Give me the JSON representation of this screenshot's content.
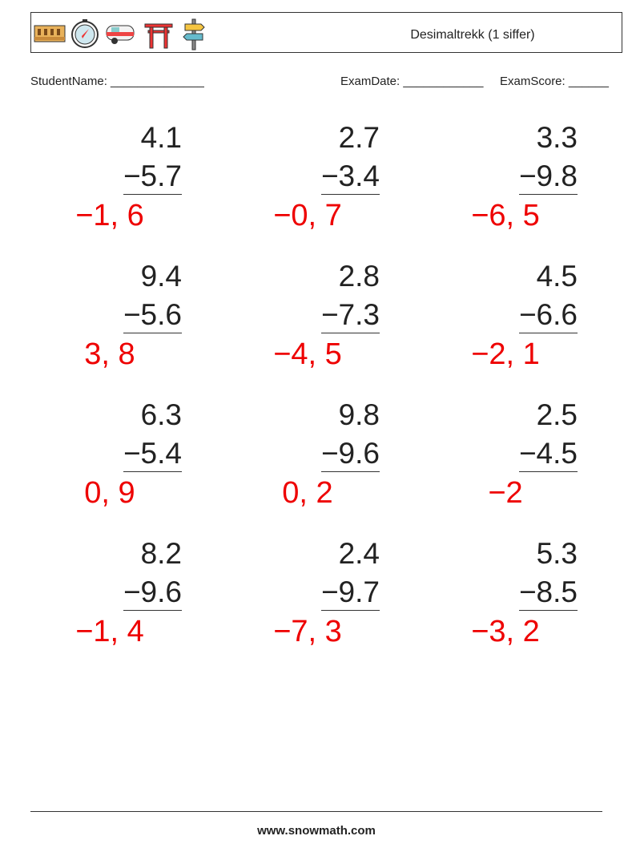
{
  "header": {
    "title": "Desimaltrekk (1 siffer)"
  },
  "fields": [
    "StudentName: ______________",
    "ExamDate: ____________",
    "ExamScore: ______"
  ],
  "problems": [
    {
      "top": "4.1",
      "bottom": "−5.7",
      "answer": "−1, 6"
    },
    {
      "top": "2.7",
      "bottom": "−3.4",
      "answer": "−0, 7"
    },
    {
      "top": "3.3",
      "bottom": "−9.8",
      "answer": "−6, 5"
    },
    {
      "top": "9.4",
      "bottom": "−5.6",
      "answer": "3, 8"
    },
    {
      "top": "2.8",
      "bottom": "−7.3",
      "answer": "−4, 5"
    },
    {
      "top": "4.5",
      "bottom": "−6.6",
      "answer": "−2, 1"
    },
    {
      "top": "6.3",
      "bottom": "−5.4",
      "answer": "0, 9"
    },
    {
      "top": "9.8",
      "bottom": "−9.6",
      "answer": "0, 2"
    },
    {
      "top": "2.5",
      "bottom": "−4.5",
      "answer": "−2"
    },
    {
      "top": "8.2",
      "bottom": "−9.6",
      "answer": "−1, 4"
    },
    {
      "top": "2.4",
      "bottom": "−9.7",
      "answer": "−7, 3"
    },
    {
      "top": "5.3",
      "bottom": "−8.5",
      "answer": "−3, 2"
    }
  ],
  "footer": {
    "url": "www.snowmath.com"
  }
}
